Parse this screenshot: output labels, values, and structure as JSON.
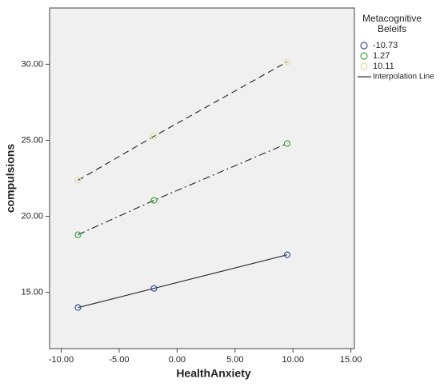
{
  "chart_data": {
    "type": "line",
    "x_label": "HealthAnxiety",
    "y_label": "compulsions",
    "legend_title": "Metacognitive Beleifs",
    "x": [
      -8.55,
      -2.0,
      9.5
    ],
    "series": [
      {
        "name": "-10.73",
        "color": "#3a4f9e",
        "line_style": "solid",
        "values": [
          14.0,
          15.26,
          17.47
        ]
      },
      {
        "name": "1.27",
        "color": "#3aa83a",
        "line_style": "dashdot",
        "values": [
          18.79,
          21.05,
          24.79
        ]
      },
      {
        "name": "10.11",
        "color": "#e6dc9a",
        "line_style": "dashed",
        "values": [
          22.37,
          25.26,
          30.16
        ]
      }
    ],
    "line_legend": "Interpolation Line",
    "xlim": [
      -11.0,
      15.3
    ],
    "xticks": [
      {
        "value": -10,
        "label": "-10.00"
      },
      {
        "value": -5,
        "label": "-5.00"
      },
      {
        "value": 0,
        "label": "0.00"
      },
      {
        "value": 5,
        "label": "5.00"
      },
      {
        "value": 10,
        "label": "10.00"
      },
      {
        "value": 15,
        "label": "15.00"
      }
    ],
    "ylim": [
      11.3,
      33.7
    ],
    "yticks": [
      {
        "value": 15,
        "label": "15.00"
      },
      {
        "value": 20,
        "label": "20.00"
      },
      {
        "value": 25,
        "label": "25.00"
      },
      {
        "value": 30,
        "label": "30.00"
      }
    ],
    "grid": false
  }
}
